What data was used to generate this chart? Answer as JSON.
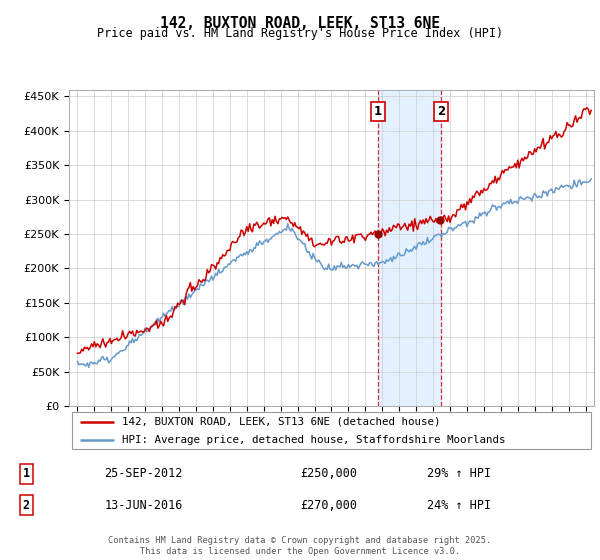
{
  "title": "142, BUXTON ROAD, LEEK, ST13 6NE",
  "subtitle": "Price paid vs. HM Land Registry's House Price Index (HPI)",
  "legend_line1": "142, BUXTON ROAD, LEEK, ST13 6NE (detached house)",
  "legend_line2": "HPI: Average price, detached house, Staffordshire Moorlands",
  "sale1_date": "25-SEP-2012",
  "sale1_date_num": 2012.73,
  "sale1_price": 250000,
  "sale1_hpi_text": "29% ↑ HPI",
  "sale2_date": "13-JUN-2016",
  "sale2_date_num": 2016.45,
  "sale2_price": 270000,
  "sale2_hpi_text": "24% ↑ HPI",
  "ylim_min": 0,
  "ylim_max": 460000,
  "yticks": [
    0,
    50000,
    100000,
    150000,
    200000,
    250000,
    300000,
    350000,
    400000,
    450000
  ],
  "ytick_labels": [
    "£0",
    "£50K",
    "£100K",
    "£150K",
    "£200K",
    "£250K",
    "£300K",
    "£350K",
    "£400K",
    "£450K"
  ],
  "line_color_red": "#cc0000",
  "line_color_blue": "#6699cc",
  "shade_color": "#ddeeff",
  "vline_color": "#cc0000",
  "dot_color": "#990000",
  "background_color": "#ffffff",
  "grid_color": "#cccccc",
  "footer": "Contains HM Land Registry data © Crown copyright and database right 2025.\nThis data is licensed under the Open Government Licence v3.0.",
  "xlim_min": 1994.5,
  "xlim_max": 2025.5
}
